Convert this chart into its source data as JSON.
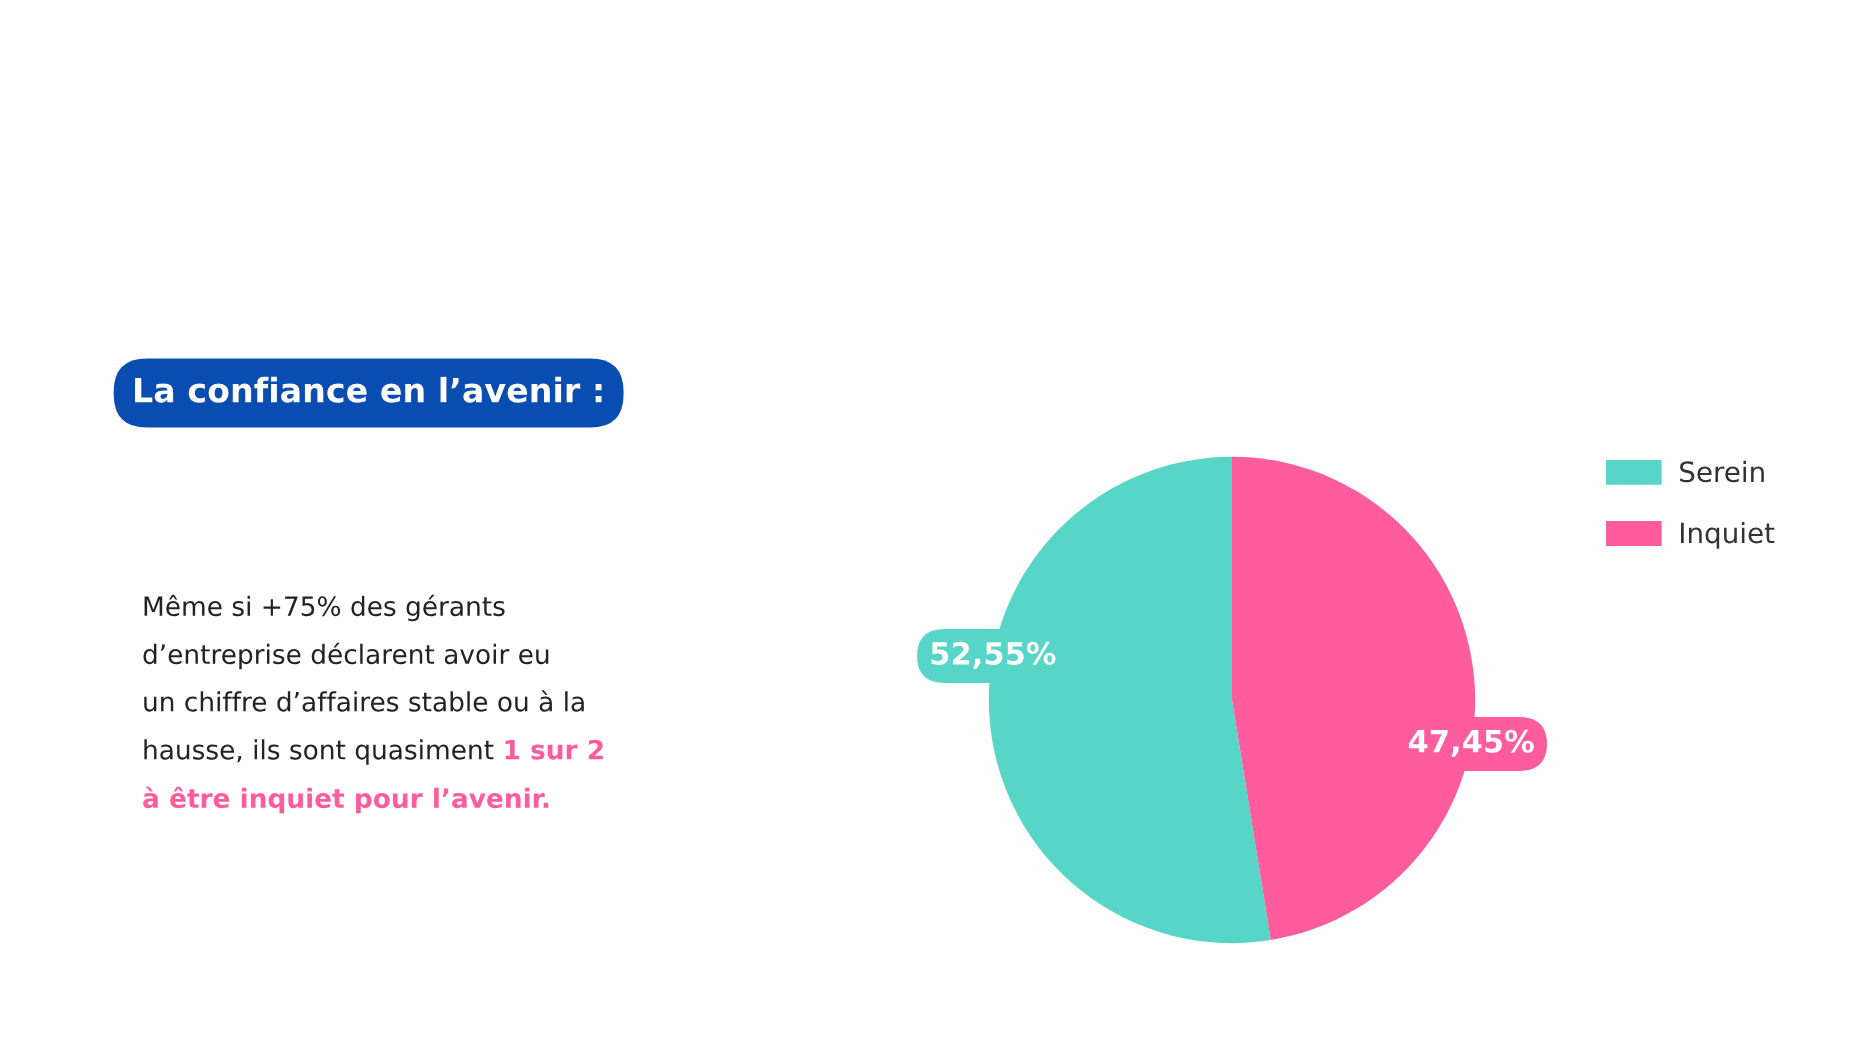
{
  "chart_data": {
    "type": "pie",
    "title": "La confiance en l’avenir :",
    "categories": [
      "Serein",
      "Inquiet"
    ],
    "values": [
      52.55,
      47.45
    ],
    "colors": [
      "#57d6c7",
      "#ff5c9d"
    ],
    "value_labels": [
      "52,55%",
      "47,45%"
    ],
    "legend": "top right",
    "annotations": [
      "Même si +75% des gérants\nd’entreprise déclarent avoir eu\nun chiffre d’affaires stable ou à la\nhausse, ils sont quasiment",
      "1 sur 2\nà être inquiet pour l’avenir."
    ]
  }
}
